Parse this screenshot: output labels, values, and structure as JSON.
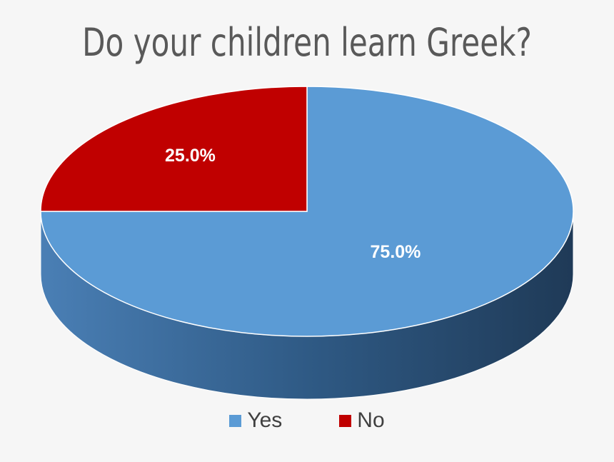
{
  "chart_data": {
    "type": "pie",
    "title": "Do your children learn Greek?",
    "series": [
      {
        "values": [
          75.0,
          25.0
        ],
        "categories": [
          "Yes",
          "No"
        ],
        "data_labels": [
          "75.0%",
          "25.0%"
        ]
      }
    ],
    "legend_position": "bottom",
    "style": "3d",
    "colors": [
      "#5b9bd5",
      "#c00000"
    ]
  }
}
